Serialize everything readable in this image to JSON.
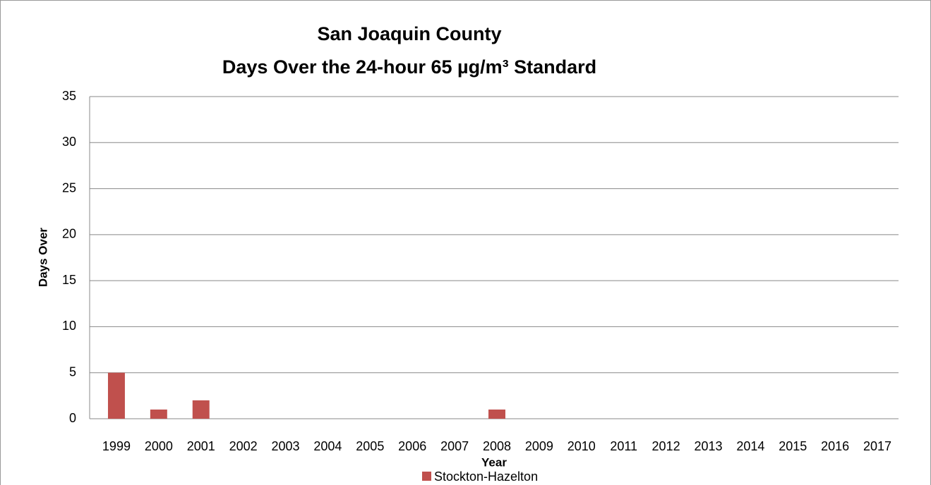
{
  "chart_data": {
    "type": "bar",
    "title": "San Joaquin County",
    "subtitle": "Days Over the 24-hour 65 µg/m³ Standard",
    "x_label": "Year",
    "y_label": "Days Over",
    "categories": [
      "1999",
      "2000",
      "2001",
      "2002",
      "2003",
      "2004",
      "2005",
      "2006",
      "2007",
      "2008",
      "2009",
      "2010",
      "2011",
      "2012",
      "2013",
      "2014",
      "2015",
      "2016",
      "2017"
    ],
    "series": [
      {
        "name": "Stockton-Hazelton",
        "color": "#c0504d",
        "values": [
          5,
          1,
          2,
          0,
          0,
          0,
          0,
          0,
          0,
          1,
          0,
          0,
          0,
          0,
          0,
          0,
          0,
          0,
          0
        ]
      }
    ],
    "ylim": [
      0,
      35
    ],
    "yticks": [
      0,
      5,
      10,
      15,
      20,
      25,
      30,
      35
    ],
    "grid": true,
    "legend": "bottom"
  }
}
